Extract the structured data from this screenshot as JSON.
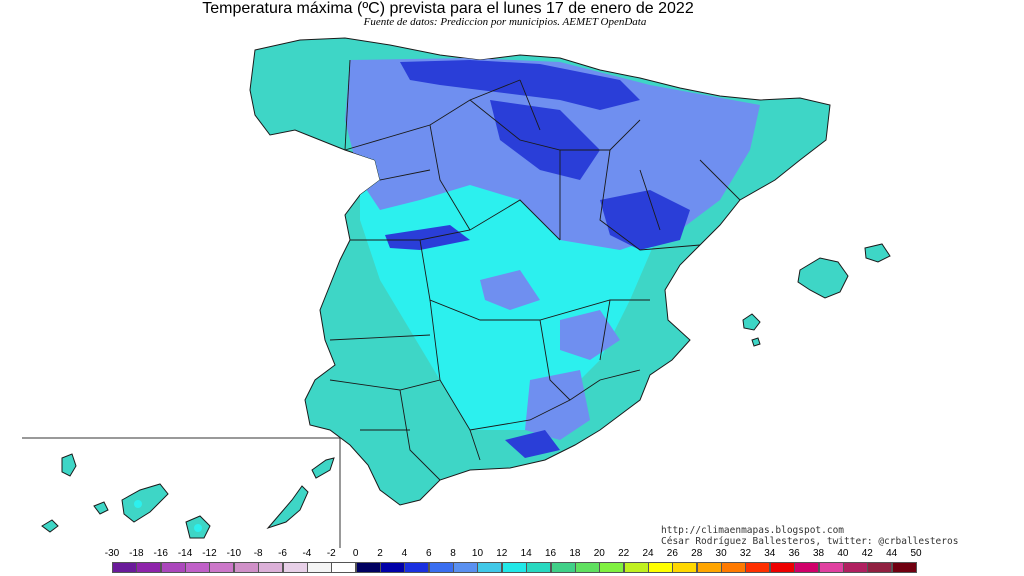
{
  "map": {
    "title": "Temperatura máxima (ºC) prevista para el lunes 17 de enero de 2022",
    "subtitle": "Fuente de datos: Prediccion por municipios. AEMET OpenData",
    "credits": {
      "url": "http://climaenmapas.blogspot.com",
      "author": "César Rodríguez Ballesteros, twitter: @crballesteros"
    },
    "regions": [
      "Península Ibérica (España)",
      "Islas Baleares",
      "Islas Canarias"
    ]
  },
  "legend": {
    "ticks": [
      "-30",
      "-18",
      "-16",
      "-14",
      "-12",
      "-10",
      "-8",
      "-6",
      "-4",
      "-2",
      "0",
      "2",
      "4",
      "6",
      "8",
      "10",
      "12",
      "14",
      "16",
      "18",
      "20",
      "22",
      "24",
      "26",
      "28",
      "30",
      "32",
      "34",
      "36",
      "38",
      "40",
      "42",
      "44",
      "50"
    ],
    "colors": [
      "#6a1b9a",
      "#8e24aa",
      "#ab47bc",
      "#c060c8",
      "#cc77c9",
      "#d090c8",
      "#dcb0d8",
      "#e8d0e8",
      "#f4f4f4",
      "#ffffff",
      "#000060",
      "#0000a8",
      "#1a30e0",
      "#3a6ef0",
      "#5a90f0",
      "#40c8e8",
      "#22e8e8",
      "#28d8c0",
      "#40d088",
      "#60e060",
      "#80f040",
      "#c0f020",
      "#ffff00",
      "#ffd700",
      "#ffa500",
      "#ff7a00",
      "#ff3000",
      "#ee0000",
      "#d0006a",
      "#e040a0",
      "#b02060",
      "#902040",
      "#700010"
    ]
  },
  "colors": {
    "peninsula_fill": "#3ed6c6",
    "interior_fill": "#2cf0ee",
    "cold_fill": "#6f8ff0",
    "coldest_fill": "#2a3ed8",
    "border_line": "#1a1a1a"
  }
}
